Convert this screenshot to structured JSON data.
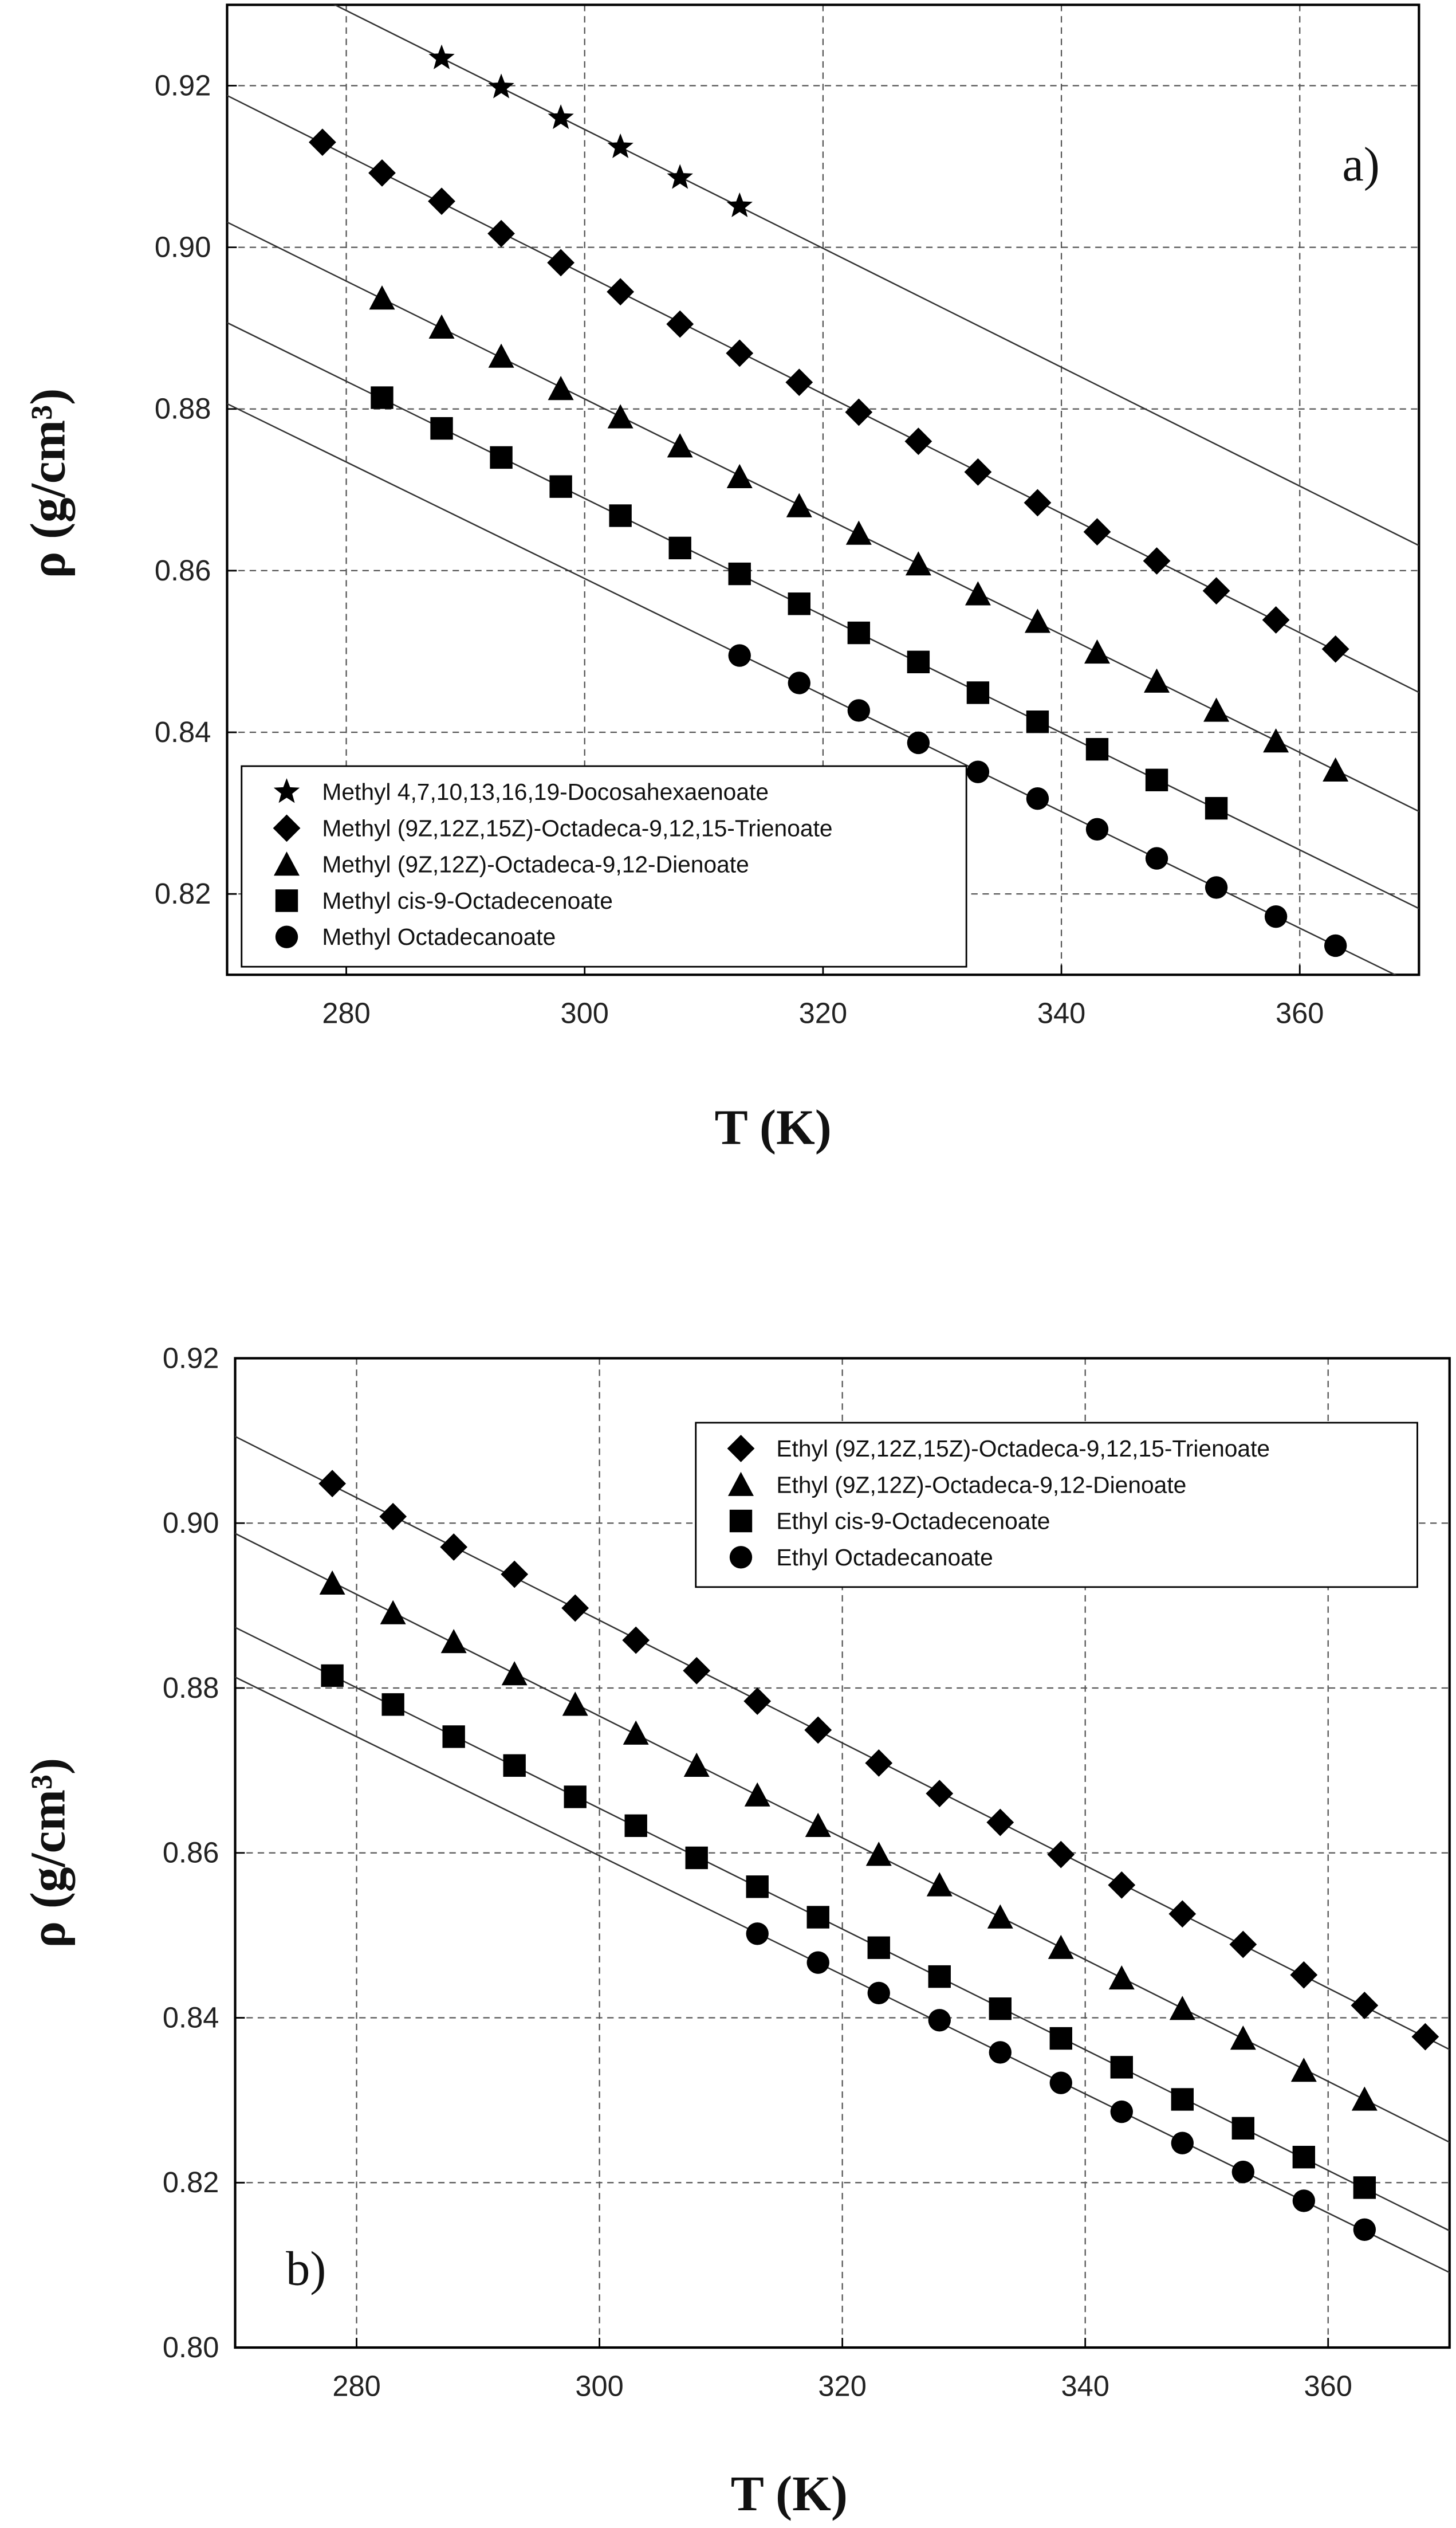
{
  "chart_data": [
    {
      "type": "scatter",
      "annotation": "a)",
      "x_label": "T (K)",
      "y_label": "ρ (g/cm³)",
      "xlim": [
        270,
        370
      ],
      "xticks": [
        280,
        300,
        320,
        340,
        360
      ],
      "ylim": [
        0.81,
        0.93
      ],
      "yticks": [
        0.82,
        0.84,
        0.86,
        0.88,
        {
          "value": 0.9,
          "label": "0.90"
        },
        0.92
      ],
      "grid": true,
      "legend": "lower left",
      "fit_lines": true,
      "series": [
        {
          "name": "Methyl 4,7,10,13,16,19-Docosahexaenoate",
          "marker": "star",
          "color": "#000000",
          "x": [
            288,
            293,
            298,
            303,
            308,
            313
          ],
          "values": [
            0.9234,
            0.9198,
            0.916,
            0.9124,
            0.9086,
            0.9051
          ]
        },
        {
          "name": "Methyl (9Z,12Z,15Z)-Octadeca-9,12,15-Trienoate",
          "marker": "diamond",
          "color": "#000000",
          "x": [
            278,
            283,
            288,
            293,
            298,
            303,
            308,
            313,
            318,
            323,
            328,
            333,
            338,
            343,
            348,
            353,
            358,
            363
          ],
          "values": [
            0.913,
            0.9092,
            0.9057,
            0.9017,
            0.8981,
            0.8945,
            0.8905,
            0.8869,
            0.8833,
            0.8796,
            0.876,
            0.8722,
            0.8684,
            0.8648,
            0.8612,
            0.8575,
            0.8539,
            0.8503
          ]
        },
        {
          "name": "Methyl (9Z,12Z)-Octadeca-9,12-Dienoate",
          "marker": "triangle",
          "color": "#000000",
          "x": [
            283,
            288,
            293,
            298,
            303,
            308,
            313,
            318,
            323,
            328,
            333,
            338,
            343,
            348,
            353,
            358,
            363
          ],
          "values": [
            0.8937,
            0.8901,
            0.8865,
            0.8825,
            0.879,
            0.8754,
            0.8716,
            0.868,
            0.8646,
            0.8608,
            0.8571,
            0.8537,
            0.8499,
            0.8463,
            0.8427,
            0.8389,
            0.8353
          ]
        },
        {
          "name": "Methyl cis-9-Octadecenoate",
          "marker": "square",
          "color": "#000000",
          "x": [
            283,
            288,
            293,
            298,
            303,
            308,
            313,
            318,
            323,
            328,
            333,
            338,
            343,
            348,
            353
          ],
          "values": [
            0.8814,
            0.8776,
            0.874,
            0.8704,
            0.8668,
            0.8628,
            0.8596,
            0.8559,
            0.8523,
            0.8487,
            0.8449,
            0.8413,
            0.8379,
            0.8341,
            0.8306
          ]
        },
        {
          "name": "Methyl Octadecanoate",
          "marker": "circle",
          "color": "#000000",
          "x": [
            313,
            318,
            323,
            328,
            333,
            338,
            343,
            348,
            353,
            358,
            363
          ],
          "values": [
            0.8495,
            0.8461,
            0.8427,
            0.8387,
            0.8351,
            0.8318,
            0.828,
            0.8244,
            0.8208,
            0.8172,
            0.8136
          ]
        }
      ]
    },
    {
      "type": "scatter",
      "annotation": "b)",
      "x_label": "T (K)",
      "y_label": "ρ (g/cm³)",
      "xlim": [
        270,
        370
      ],
      "xticks": [
        280,
        300,
        320,
        340,
        360
      ],
      "ylim": [
        0.8,
        0.92
      ],
      "yticks": [
        {
          "value": 0.8,
          "label": "0.80"
        },
        0.82,
        0.84,
        0.86,
        0.88,
        {
          "value": 0.9,
          "label": "0.90"
        },
        0.92
      ],
      "grid": true,
      "legend": "upper right",
      "fit_lines": true,
      "series": [
        {
          "name": "Ethyl (9Z,12Z,15Z)-Octadeca-9,12,15-Trienoate",
          "marker": "diamond",
          "color": "#000000",
          "x": [
            278,
            283,
            288,
            293,
            298,
            303,
            308,
            313,
            318,
            323,
            328,
            333,
            338,
            343,
            348,
            353,
            358,
            363,
            368
          ],
          "values": [
            0.9048,
            0.9008,
            0.8971,
            0.8938,
            0.8897,
            0.8858,
            0.8821,
            0.8784,
            0.8749,
            0.8709,
            0.8672,
            0.8637,
            0.8598,
            0.8561,
            0.8526,
            0.8489,
            0.8452,
            0.8415,
            0.8377
          ]
        },
        {
          "name": "Ethyl (9Z,12Z)-Octadeca-9,12-Dienoate",
          "marker": "triangle",
          "color": "#000000",
          "x": [
            278,
            283,
            288,
            293,
            298,
            303,
            308,
            313,
            318,
            323,
            328,
            333,
            338,
            343,
            348,
            353,
            358,
            363
          ],
          "values": [
            0.8927,
            0.8891,
            0.8856,
            0.8817,
            0.878,
            0.8745,
            0.8706,
            0.867,
            0.8633,
            0.8598,
            0.8561,
            0.8522,
            0.8485,
            0.8448,
            0.8411,
            0.8375,
            0.8336,
            0.8301
          ]
        },
        {
          "name": "Ethyl cis-9-Octadecenoate",
          "marker": "square",
          "color": "#000000",
          "x": [
            278,
            283,
            288,
            293,
            298,
            303,
            308,
            313,
            318,
            323,
            328,
            333,
            338,
            343,
            348,
            353,
            358,
            363
          ],
          "values": [
            0.8815,
            0.878,
            0.8741,
            0.8706,
            0.8668,
            0.8633,
            0.8594,
            0.8559,
            0.8522,
            0.8485,
            0.845,
            0.8411,
            0.8375,
            0.834,
            0.8301,
            0.8266,
            0.8231,
            0.8194
          ]
        },
        {
          "name": "Ethyl Octadecanoate",
          "marker": "circle",
          "color": "#000000",
          "x": [
            313,
            318,
            323,
            328,
            333,
            338,
            343,
            348,
            353,
            358,
            363
          ],
          "values": [
            0.8502,
            0.8467,
            0.843,
            0.8397,
            0.8358,
            0.8321,
            0.8286,
            0.8248,
            0.8213,
            0.8178,
            0.8143
          ]
        }
      ]
    }
  ]
}
